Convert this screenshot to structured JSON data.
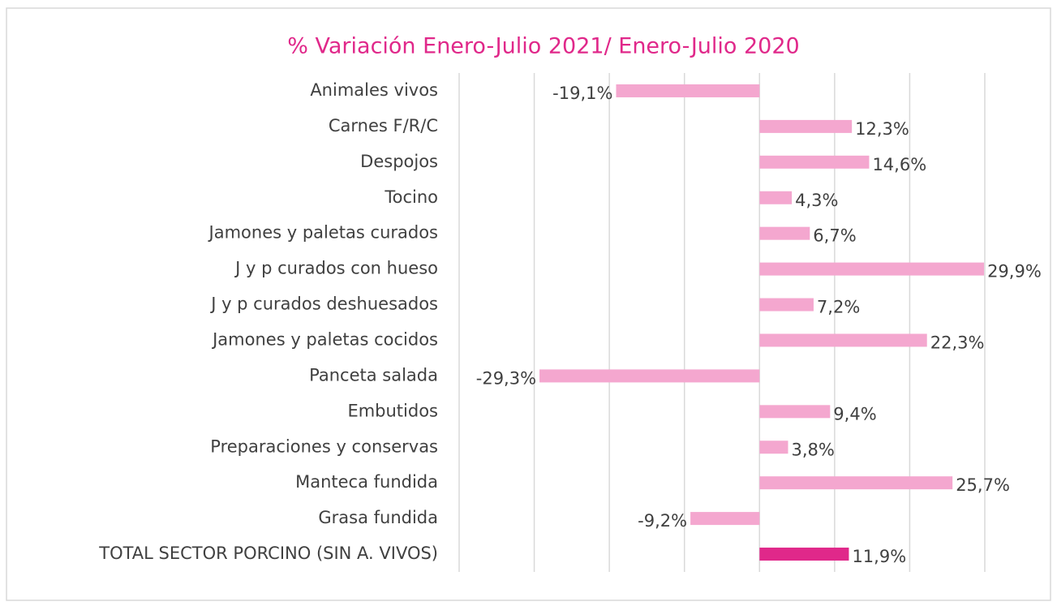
{
  "chart_data": {
    "type": "bar",
    "orientation": "horizontal",
    "title": "% Variación Enero-Julio 2021/ Enero-Julio 2020",
    "categories": [
      "Animales vivos",
      "Carnes F/R/C",
      "Despojos",
      "Tocino",
      "Jamones y paletas curados",
      "J y p curados con hueso",
      "J y p curados deshuesados",
      "Jamones y paletas cocidos",
      "Panceta salada",
      "Embutidos",
      "Preparaciones y conservas",
      "Manteca fundida",
      "Grasa fundida",
      "TOTAL SECTOR PORCINO (SIN A. VIVOS)"
    ],
    "values": [
      -19.1,
      12.3,
      14.6,
      4.3,
      6.7,
      29.9,
      7.2,
      22.3,
      -29.3,
      9.4,
      3.8,
      25.7,
      -9.2,
      11.9
    ],
    "value_labels": [
      "-19,1%",
      "12,3%",
      "14,6%",
      "4,3%",
      "6,7%",
      "29,9%",
      "7,2%",
      "22,3%",
      "-29,3%",
      "9,4%",
      "3,8%",
      "25,7%",
      "-9,2%",
      "11,9%"
    ],
    "colors": [
      "#f4a7cf",
      "#f4a7cf",
      "#f4a7cf",
      "#f4a7cf",
      "#f4a7cf",
      "#f4a7cf",
      "#f4a7cf",
      "#f4a7cf",
      "#f4a7cf",
      "#f4a7cf",
      "#f4a7cf",
      "#f4a7cf",
      "#f4a7cf",
      "#e0288a"
    ],
    "xlim": [
      -40,
      30
    ],
    "xticks": [
      -40,
      -30,
      -20,
      -10,
      0,
      10,
      20,
      30
    ],
    "grid": true
  }
}
